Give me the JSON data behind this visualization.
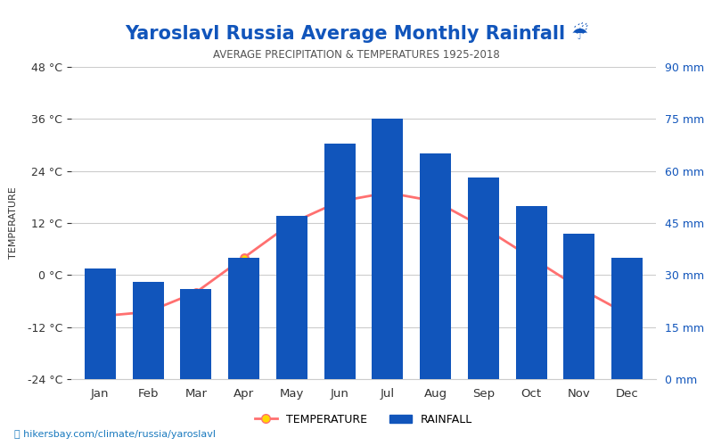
{
  "title": "Yaroslavl Russia Average Monthly Rainfall ☔",
  "subtitle": "AVERAGE PRECIPITATION & TEMPERATURES 1925-2018",
  "months": [
    "Jan",
    "Feb",
    "Mar",
    "Apr",
    "May",
    "Jun",
    "Jul",
    "Aug",
    "Sep",
    "Oct",
    "Nov",
    "Dec"
  ],
  "temperature": [
    -9.5,
    -8.5,
    -4.0,
    4.0,
    12.0,
    17.0,
    19.0,
    17.0,
    11.0,
    4.0,
    -3.0,
    -9.0
  ],
  "rainfall": [
    32,
    28,
    26,
    35,
    47,
    68,
    75,
    65,
    58,
    50,
    42,
    35
  ],
  "temp_ylim": [
    -24,
    48
  ],
  "rain_ylim": [
    0,
    90
  ],
  "temp_yticks": [
    -24,
    -12,
    0,
    12,
    24,
    36,
    48
  ],
  "rain_yticks": [
    0,
    15,
    30,
    45,
    60,
    75,
    90
  ],
  "bar_color": "#1155BB",
  "line_color": "#FF7070",
  "marker_facecolor": "#FFD700",
  "marker_edgecolor": "#FF7070",
  "title_color": "#1155BB",
  "subtitle_color": "#555555",
  "left_axis_color": "#333333",
  "right_axis_color": "#1155BB",
  "legend_temp_label": "TEMPERATURE",
  "legend_rain_label": "RAINFALL",
  "watermark": "hikersbay.com/climate/russia/yaroslavl",
  "background_color": "#ffffff",
  "grid_color": "#cccccc"
}
